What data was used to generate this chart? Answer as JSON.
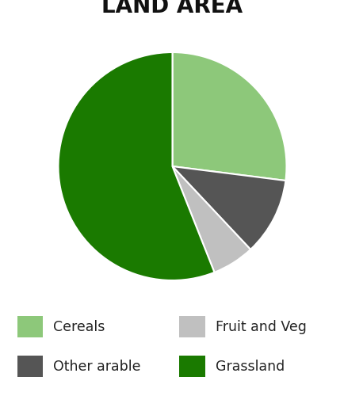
{
  "title": "LAND AREA",
  "slices": [
    {
      "label": "Cereals",
      "value": 27,
      "color": "#8DC87A"
    },
    {
      "label": "Other arable",
      "value": 11,
      "color": "#555555"
    },
    {
      "label": "Fruit and Veg",
      "value": 6,
      "color": "#C0C0C0"
    },
    {
      "label": "Grassland",
      "value": 56,
      "color": "#1A7A00"
    }
  ],
  "startangle": 90,
  "legend_positions": [
    {
      "label": "Cereals",
      "color": "#8DC87A",
      "col": 0,
      "row": 0
    },
    {
      "label": "Fruit and Veg",
      "color": "#C0C0C0",
      "col": 1,
      "row": 0
    },
    {
      "label": "Other arable",
      "color": "#555555",
      "col": 0,
      "row": 1
    },
    {
      "label": "Grassland",
      "color": "#1A7A00",
      "col": 1,
      "row": 1
    }
  ],
  "background_color": "#ffffff",
  "title_fontsize": 20,
  "legend_fontsize": 12.5,
  "edgecolor": "#ffffff"
}
